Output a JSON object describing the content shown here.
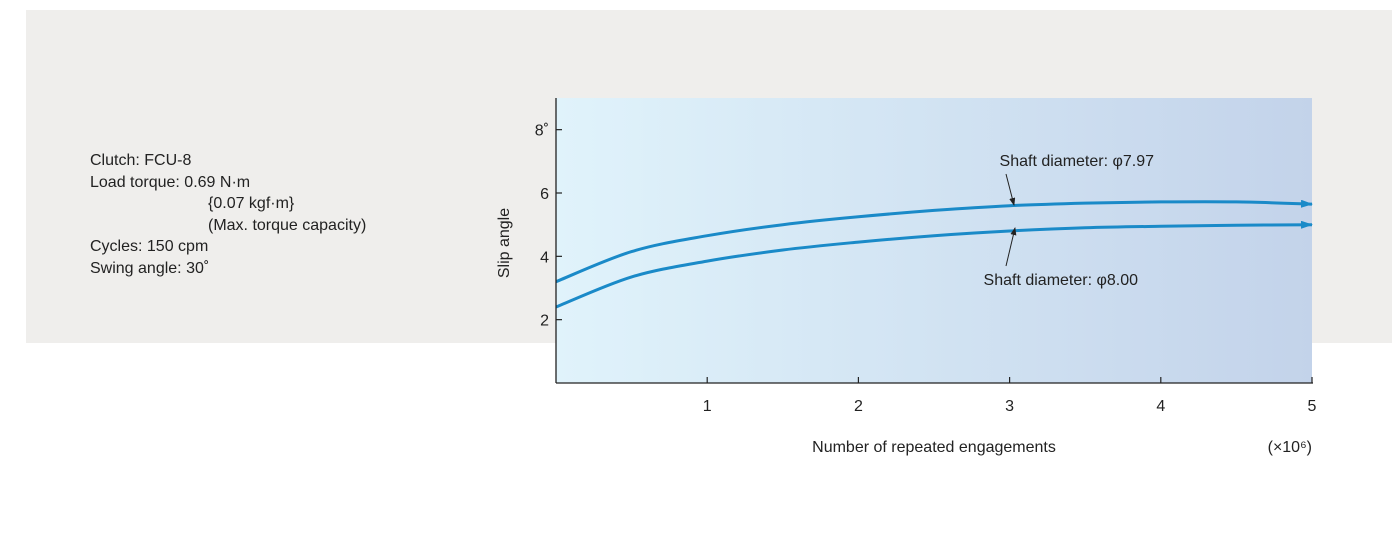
{
  "conditions": {
    "clutch": "Clutch: FCU-8",
    "load_torque": "Load torque: 0.69 N·m",
    "load_torque_kgf": "{0.07 kgf·m}",
    "load_torque_note": "(Max. torque capacity)",
    "cycles": "Cycles: 150 cpm",
    "swing_angle": "Swing angle: 30˚"
  },
  "chart_data": {
    "type": "line",
    "title": "",
    "xlabel": "Number of repeated engagements",
    "x_unit": "(×10⁶)",
    "ylabel": "Slip angle",
    "xlim": [
      0,
      5
    ],
    "ylim": [
      0,
      9
    ],
    "x_ticks": [
      "1",
      "2",
      "3",
      "4",
      "5"
    ],
    "y_ticks": [
      "2",
      "4",
      "6",
      "8˚"
    ],
    "y_tick_values": [
      2,
      4,
      6,
      8
    ],
    "background_gradient": [
      "#e0f3fb",
      "#c3d3ea"
    ],
    "line_color": "#1a8ac8",
    "series": [
      {
        "name": "Shaft diameter: φ7.97",
        "x": [
          0,
          0.5,
          1,
          1.5,
          2,
          2.5,
          3,
          3.5,
          4,
          4.5,
          5
        ],
        "y": [
          3.2,
          4.15,
          4.65,
          5.0,
          5.25,
          5.45,
          5.6,
          5.68,
          5.72,
          5.72,
          5.65
        ]
      },
      {
        "name": "Shaft diameter: φ8.00",
        "x": [
          0,
          0.5,
          1,
          1.5,
          2,
          2.5,
          3,
          3.5,
          4,
          4.5,
          5
        ],
        "y": [
          2.4,
          3.35,
          3.85,
          4.2,
          4.45,
          4.65,
          4.8,
          4.9,
          4.95,
          4.98,
          5.0
        ]
      }
    ]
  }
}
